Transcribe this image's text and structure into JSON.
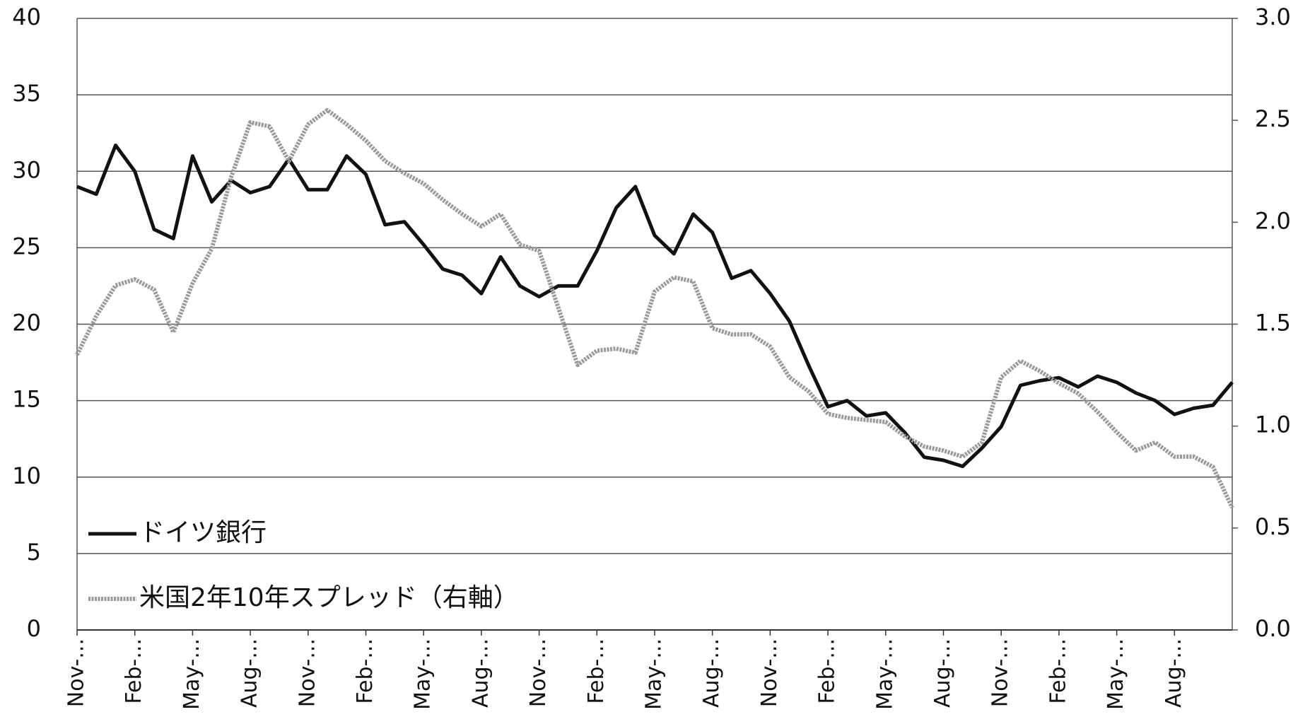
{
  "chart_data": {
    "type": "line",
    "categories": [
      "Nov-...",
      null,
      null,
      "Feb-...",
      null,
      null,
      "May-...",
      null,
      null,
      "Aug-...",
      null,
      null,
      "Nov-...",
      null,
      null,
      "Feb-...",
      null,
      null,
      "May-...",
      null,
      null,
      "Aug-...",
      null,
      null,
      "Nov-...",
      null,
      null,
      "Feb-...",
      null,
      null,
      "May-...",
      null,
      null,
      "Aug-...",
      null,
      null,
      "Nov-...",
      null,
      null,
      "Feb-...",
      null,
      null,
      "May-...",
      null,
      null,
      "Aug-...",
      null,
      null,
      "Nov-...",
      null,
      null,
      "Feb-...",
      null,
      null,
      "May-...",
      null,
      null,
      "Aug-...",
      null,
      null,
      null
    ],
    "series": [
      {
        "name": "ドイツ銀行",
        "color": "#111111",
        "axis": "y",
        "values": [
          29,
          28.5,
          31.7,
          30,
          26.2,
          25.6,
          31,
          28,
          29.4,
          28.6,
          29,
          30.8,
          28.8,
          28.8,
          31,
          29.8,
          26.5,
          26.7,
          25.2,
          23.6,
          23.2,
          22,
          24.4,
          22.5,
          21.8,
          22.5,
          22.5,
          24.8,
          27.6,
          29,
          25.8,
          24.6,
          27.2,
          26,
          23,
          23.5,
          22,
          20.2,
          17.3,
          14.6,
          15,
          14,
          14.2,
          12.9,
          11.3,
          11.1,
          10.7,
          11.9,
          13.3,
          16,
          16.3,
          16.5,
          15.9,
          16.6,
          16.2,
          15.5,
          15,
          14.1,
          14.5,
          14.7,
          16.2
        ]
      },
      {
        "name": "米国2年10年スプレッド（右軸）",
        "color": "#9a9a9a",
        "axis": "y2",
        "values": [
          1.35,
          1.54,
          1.69,
          1.72,
          1.67,
          1.46,
          1.7,
          1.87,
          2.22,
          2.49,
          2.47,
          2.3,
          2.48,
          2.55,
          2.48,
          2.4,
          2.3,
          2.24,
          2.19,
          2.11,
          2.04,
          1.98,
          2.04,
          1.89,
          1.86,
          1.58,
          1.3,
          1.37,
          1.38,
          1.36,
          1.66,
          1.73,
          1.71,
          1.48,
          1.45,
          1.45,
          1.39,
          1.24,
          1.17,
          1.06,
          1.04,
          1.03,
          1.02,
          0.95,
          0.9,
          0.88,
          0.85,
          0.92,
          1.24,
          1.32,
          1.27,
          1.21,
          1.16,
          1.07,
          0.97,
          0.88,
          0.92,
          0.85,
          0.85,
          0.8,
          0.6
        ]
      }
    ],
    "ylim": [
      0,
      40
    ],
    "yticks": [
      0,
      5,
      10,
      15,
      20,
      25,
      30,
      35,
      40
    ],
    "y2lim": [
      0,
      3
    ],
    "y2ticks": [
      {
        "value": 0,
        "label": "0.0"
      },
      0.5,
      {
        "value": 1,
        "label": "1.0"
      },
      1.5,
      {
        "value": 2,
        "label": "2.0"
      },
      2.5,
      {
        "value": 3,
        "label": "3.0"
      }
    ],
    "grid": true,
    "legend": "lower left"
  }
}
